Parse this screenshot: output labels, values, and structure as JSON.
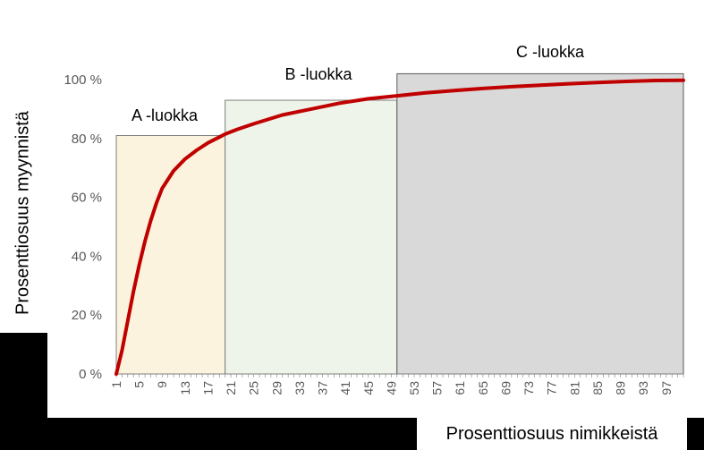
{
  "chart_data": {
    "type": "line",
    "xlabel": "Prosenttiosuus nimikkeistä",
    "ylabel": "Prosenttiosuus myynnistä",
    "y_ticks": [
      "0 %",
      "20 %",
      "40 %",
      "60 %",
      "80 %",
      "100 %"
    ],
    "ylim": [
      0,
      100
    ],
    "x_ticks": [
      "1",
      "5",
      "9",
      "13",
      "17",
      "21",
      "25",
      "29",
      "33",
      "37",
      "41",
      "45",
      "49",
      "53",
      "57",
      "61",
      "65",
      "69",
      "73",
      "77",
      "81",
      "85",
      "89",
      "93",
      "97"
    ],
    "xlim": [
      1,
      100
    ],
    "classes": [
      {
        "label": "A -luokka",
        "x_start": 1,
        "x_end": 20,
        "y_top": 81,
        "fill": "#fbf3dd",
        "stroke": "#7f7f7f"
      },
      {
        "label": "B -luokka",
        "x_start": 20,
        "x_end": 50,
        "y_top": 93,
        "fill": "#eef4e9",
        "stroke": "#7f7f7f"
      },
      {
        "label": "C -luokka",
        "x_start": 50,
        "x_end": 100,
        "y_top": 102,
        "fill": "#d9d9d9",
        "stroke": "#595959"
      }
    ],
    "series": [
      {
        "color": "#c00000",
        "x": [
          1,
          2,
          3,
          4,
          5,
          6,
          7,
          8,
          9,
          10,
          11,
          12,
          13,
          15,
          17,
          19,
          20,
          22,
          25,
          30,
          35,
          40,
          45,
          50,
          55,
          60,
          65,
          70,
          75,
          80,
          85,
          90,
          95,
          100
        ],
        "y": [
          0,
          8,
          18,
          28,
          37,
          45,
          52,
          58,
          63,
          66,
          69,
          71,
          73,
          76,
          78.5,
          80.5,
          81.5,
          83,
          85,
          88,
          90,
          92,
          93.5,
          94.5,
          95.5,
          96.3,
          97,
          97.6,
          98.1,
          98.6,
          99,
          99.4,
          99.7,
          99.8
        ]
      }
    ]
  }
}
